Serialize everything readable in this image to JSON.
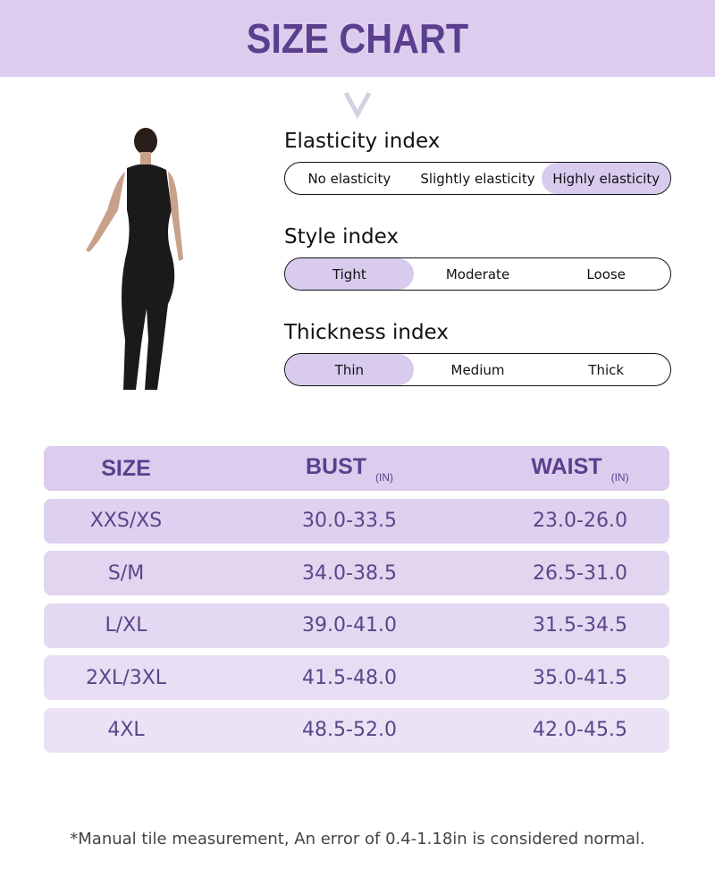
{
  "title": "SIZE CHART",
  "indices": [
    {
      "label": "Elasticity index",
      "options": [
        "No elasticity",
        "Slightly elasticity",
        "Highly elasticity"
      ],
      "selected": "Highly elasticity"
    },
    {
      "label": "Style index",
      "options": [
        "Tight",
        "Moderate",
        "Loose"
      ],
      "selected": "Tight"
    },
    {
      "label": "Thickness index",
      "options": [
        "Thin",
        "Medium",
        "Thick"
      ],
      "selected": "Thin"
    }
  ],
  "table": {
    "headers": {
      "size": "SIZE",
      "bust": "BUST",
      "bust_unit": "(IN)",
      "waist": "WAIST",
      "waist_unit": "(IN)"
    },
    "rows": [
      {
        "size": "XXS/XS",
        "bust": "30.0-33.5",
        "waist": "23.0-26.0"
      },
      {
        "size": "S/M",
        "bust": "34.0-38.5",
        "waist": "26.5-31.0"
      },
      {
        "size": "L/XL",
        "bust": "39.0-41.0",
        "waist": "31.5-34.5"
      },
      {
        "size": "2XL/3XL",
        "bust": "41.5-48.0",
        "waist": "35.0-41.5"
      },
      {
        "size": "4XL",
        "bust": "48.5-52.0",
        "waist": "42.0-45.5"
      }
    ]
  },
  "note": "*Manual tile measurement, An error of 0.4-1.18in is considered normal.",
  "colors": {
    "banner": "#dccdee",
    "accent": "#5b3f8e",
    "selected": "#d8cbee"
  }
}
